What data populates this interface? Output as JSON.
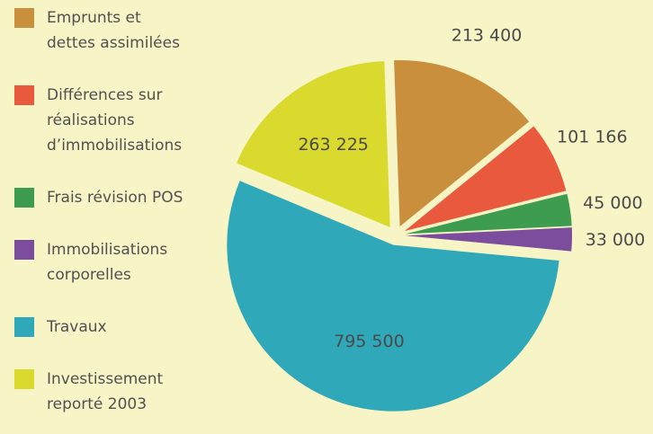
{
  "chart_data": {
    "type": "pie",
    "categories": [
      "Emprunts et\ndettes assimilées",
      "Différences sur\nréalisations\nd’immobilisations",
      "Frais révision POS",
      "Immobilisations\ncorporelles",
      "Travaux",
      "Investissement\nreporté 2003"
    ],
    "values": [
      213400,
      101166,
      45000,
      33000,
      795500,
      263225
    ],
    "value_labels": [
      "213 400",
      "101 166",
      "45 000",
      "33 000",
      "795 500",
      "263 225"
    ],
    "colors": [
      "#c98f3c",
      "#e9593d",
      "#3d9c50",
      "#7b4d9c",
      "#2fa9b9",
      "#d9d92e"
    ],
    "legend": "left"
  }
}
